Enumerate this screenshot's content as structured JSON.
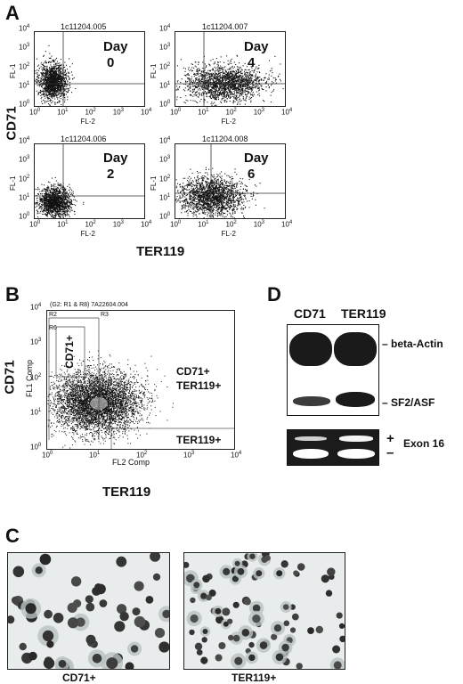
{
  "panel_a": {
    "letter": "A",
    "plots": [
      {
        "title": "1c11204.005",
        "day_word": "Day",
        "day_num": "0"
      },
      {
        "title": "1c11204.007",
        "day_word": "Day",
        "day_num": "4"
      },
      {
        "title": "1c11204.006",
        "day_word": "Day",
        "day_num": "2"
      },
      {
        "title": "1c11204.008",
        "day_word": "Day",
        "day_num": "6"
      }
    ],
    "x_axis_label": "FL-2",
    "y_axis_label": "FL-1",
    "x_ticks": [
      "10^0",
      "10^1",
      "10^2",
      "10^3",
      "10^4"
    ],
    "y_ticks": [
      "10^0",
      "10^1",
      "10^2",
      "10^3",
      "10^4"
    ],
    "outer_y_label": "CD71",
    "outer_x_label": "TER119"
  },
  "panel_b": {
    "letter": "B",
    "title": "(G2: R1 & R8) 7A22604.004",
    "region_labels": [
      "R2",
      "R3",
      "R6"
    ],
    "gate_label": "CD71+",
    "quadrant_label_1": "CD71+",
    "quadrant_label_2": "TER119+",
    "quadrant_label_3": "TER119+",
    "x_axis_label": "FL2 Comp",
    "y_axis_label": "FL1 Comp",
    "outer_y_label": "CD71",
    "outer_x_label": "TER119",
    "x_ticks": [
      "10^0",
      "10^1",
      "10^2",
      "10^3",
      "10^4"
    ],
    "y_ticks": [
      "10^0",
      "10^1",
      "10^2",
      "10^3",
      "10^4"
    ]
  },
  "panel_c": {
    "letter": "C",
    "left_label": "CD71+",
    "right_label": "TER119+"
  },
  "panel_d": {
    "letter": "D",
    "lane_1": "CD71",
    "lane_2": "TER119",
    "band_label_1": "beta-Actin",
    "band_label_2": "SF2/ASF",
    "plus_sign": "+",
    "minus_sign": "–",
    "exon_label": "Exon 16"
  },
  "colors": {
    "ink": "#111111",
    "gel_bg": "#1b1b1b",
    "band_white": "#ffffff",
    "cell_dark": "#3a3a3a"
  }
}
